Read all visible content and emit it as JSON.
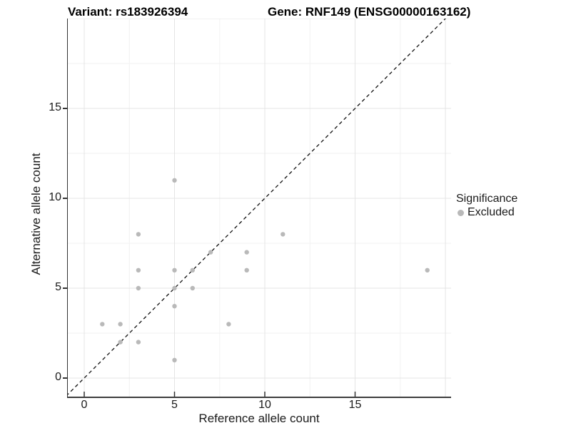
{
  "header": {
    "title_variant": "Variant: rs183926394",
    "title_gene": "Gene: RNF149 (ENSG00000163162)"
  },
  "legend": {
    "title": "Significance",
    "items": [
      {
        "label": "Excluded",
        "color": "#b9b9b9"
      }
    ]
  },
  "chart_data": {
    "type": "scatter",
    "title": "Variant: rs183926394 — Gene: RNF149 (ENSG00000163162)",
    "xlabel": "Reference allele count",
    "ylabel": "Alternative allele count",
    "x_tick_labels": [
      0,
      5,
      10,
      15
    ],
    "y_tick_labels": [
      0,
      5,
      10,
      15
    ],
    "x_grid_major": [
      0,
      5,
      10,
      15,
      20
    ],
    "x_grid_minor": [
      2.5,
      7.5,
      12.5,
      17.5
    ],
    "y_grid_major": [
      0,
      5,
      10,
      15,
      20
    ],
    "y_grid_minor": [
      2.5,
      7.5,
      12.5,
      17.5
    ],
    "xlim": [
      -0.9,
      20.3
    ],
    "ylim": [
      -1.05,
      20
    ],
    "grid": "on",
    "legend_position": "right",
    "points": [
      [
        1,
        3
      ],
      [
        2,
        2
      ],
      [
        2,
        3
      ],
      [
        3,
        2
      ],
      [
        3,
        5
      ],
      [
        3,
        6
      ],
      [
        3,
        8
      ],
      [
        5,
        1
      ],
      [
        5,
        4
      ],
      [
        5,
        5
      ],
      [
        5,
        6
      ],
      [
        5,
        11
      ],
      [
        6,
        5
      ],
      [
        6,
        6
      ],
      [
        7,
        7
      ],
      [
        8,
        3
      ],
      [
        9,
        6
      ],
      [
        9,
        7
      ],
      [
        11,
        8
      ],
      [
        19,
        6
      ]
    ],
    "series": [
      {
        "name": "Excluded",
        "point_count": 20
      }
    ],
    "identity_line": {
      "style": "dashed",
      "equation": "y = x"
    },
    "colors": {
      "point": "#b9b9b9",
      "line": "#111111",
      "grid_major": "#e4e4e4",
      "grid_minor": "#f2f2f2",
      "axis": "#333333"
    }
  }
}
